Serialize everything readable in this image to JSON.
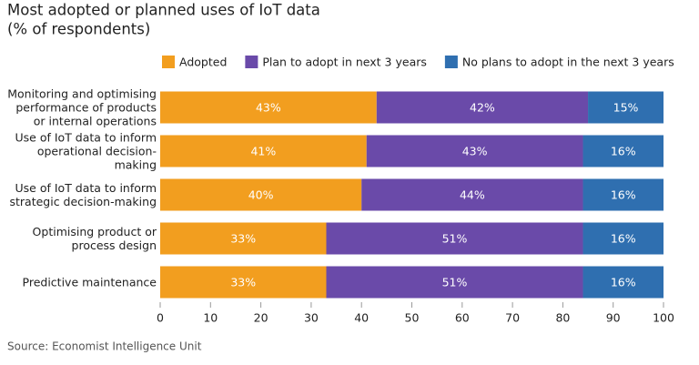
{
  "chart_data": {
    "type": "stacked_bar_horizontal",
    "title": "Most adopted or planned uses of IoT data",
    "subtitle": "(% of respondents)",
    "categories": [
      "Monitoring and optimising performance of products or internal operations",
      "Use of IoT data to inform operational decision-making",
      "Use of IoT data to inform strategic decision-making",
      "Optimising product or process design",
      "Predictive maintenance"
    ],
    "series": [
      {
        "name": "Adopted",
        "color": "#f29e1f",
        "values": [
          43,
          41,
          40,
          33,
          33
        ],
        "value_labels": [
          "43%",
          "41%",
          "40%",
          "33%",
          "33%"
        ]
      },
      {
        "name": "Plan to adopt in next 3 years",
        "color": "#6a4aa9",
        "values": [
          42,
          43,
          44,
          51,
          51
        ],
        "value_labels": [
          "42%",
          "43%",
          "44%",
          "51%",
          "51%"
        ]
      },
      {
        "name": "No plans to adopt in the next 3 years",
        "color": "#2f6fb0",
        "values": [
          15,
          16,
          16,
          16,
          16
        ],
        "value_labels": [
          "15%",
          "16%",
          "16%",
          "16%",
          "16%"
        ]
      }
    ],
    "xlim": [
      0,
      100
    ],
    "xticks": [
      0,
      10,
      20,
      30,
      40,
      50,
      60,
      70,
      80,
      90,
      100
    ],
    "grid": false,
    "source": "Source: Economist Intelligence Unit"
  }
}
